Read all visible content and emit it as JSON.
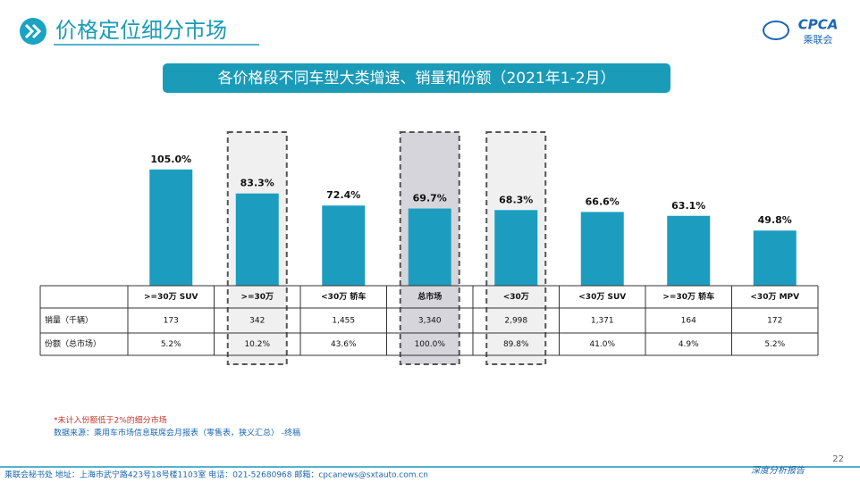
{
  "header": {
    "title": "价格定位细分市场",
    "logo": "CPCA",
    "logo_sub": "乘联会"
  },
  "chart_data": {
    "type": "bar",
    "title": "各价格段不同车型大类增速、销量和份额（2021年1-2月）",
    "categories": [
      ">=30万 SUV",
      ">=30万",
      "<30万 轿车",
      "总市场",
      "<30万",
      "<30万 SUV",
      ">=30万 轿车",
      "<30万 MPV"
    ],
    "values": [
      105.0,
      83.3,
      72.4,
      69.7,
      68.3,
      66.6,
      63.1,
      49.8
    ],
    "value_labels": [
      "105.0%",
      "83.3%",
      "72.4%",
      "69.7%",
      "68.3%",
      "66.6%",
      "63.1%",
      "49.8%"
    ],
    "color": "#1c9dc0"
  },
  "table": {
    "rows": [
      {
        "label": "销量（千辆）",
        "cells": [
          "173",
          "342",
          "1,455",
          "3,340",
          "2,998",
          "1,371",
          "164",
          "172"
        ]
      },
      {
        "label": "份额（总市场）",
        "cells": [
          "5.2%",
          "10.2%",
          "43.6%",
          "100.0%",
          "89.8%",
          "41.0%",
          "4.9%",
          "5.2%"
        ]
      }
    ]
  },
  "notes": [
    "*未计入份额低于2%的细分市场",
    "数据来源：乘用车市场信息联席会月报表（零售表，狭义汇总） -终稿"
  ],
  "page_number": "22",
  "footer": {
    "contact": "乘联会秘书处   地址：上海市武宁路423号18号楼1103室  电话：021-52680968   邮箱：cpcanews@sxtauto.com.cn",
    "tag": "深度分析报告"
  }
}
